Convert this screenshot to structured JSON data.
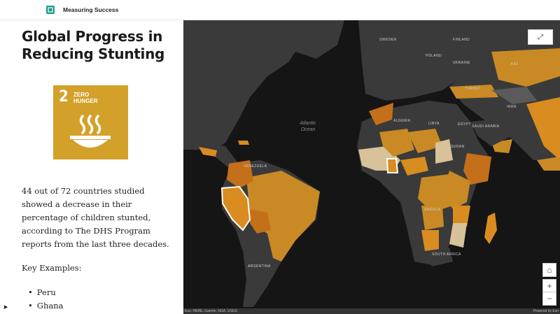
{
  "app": {
    "title": "Measuring Success"
  },
  "story": {
    "title": "Global Progress in Reducing Stunting",
    "sdg": {
      "number": "2",
      "line1": "ZERO",
      "line2": "HUNGER",
      "color": "#d3a029"
    },
    "body": "44 out of 72 countries studied showed a decrease in their percentage of children stunted, according to The DHS Program reports from the last three decades.",
    "key_heading": "Key Examples:",
    "key_examples": [
      "Peru",
      "Ghana"
    ]
  },
  "map": {
    "ocean_label": "Atlantic Ocean",
    "labels": {
      "venezuela": "VENEZUELA",
      "argentina": "ARGENTINA",
      "algeria": "ALGERIA",
      "libya": "LIBYA",
      "egypt": "EGYPT",
      "sudan": "SUDAN",
      "saudi": "SAUDI ARABIA",
      "angola": "ANGOLA",
      "south_africa": "SOUTH AFRICA",
      "ukraine": "UKRAINE",
      "poland": "POLAND",
      "sweden": "SWEDEN",
      "finland": "FINLAND",
      "iran": "IRAN",
      "turkey": "TURKEY",
      "kaz": "KAZ"
    },
    "attribution_left": "Esri, HERE, Garmin, NGA, USGS",
    "attribution_right": "Powered by Esri",
    "colors": {
      "background": "#151515",
      "land": "#3a3a3a",
      "highlight": "#d98c1f",
      "dark_orange": "#c4701a",
      "light": "#d8c29a"
    }
  },
  "controls": {
    "expand": "⤢",
    "home": "⌂",
    "zoom_in": "+",
    "zoom_out": "−"
  }
}
